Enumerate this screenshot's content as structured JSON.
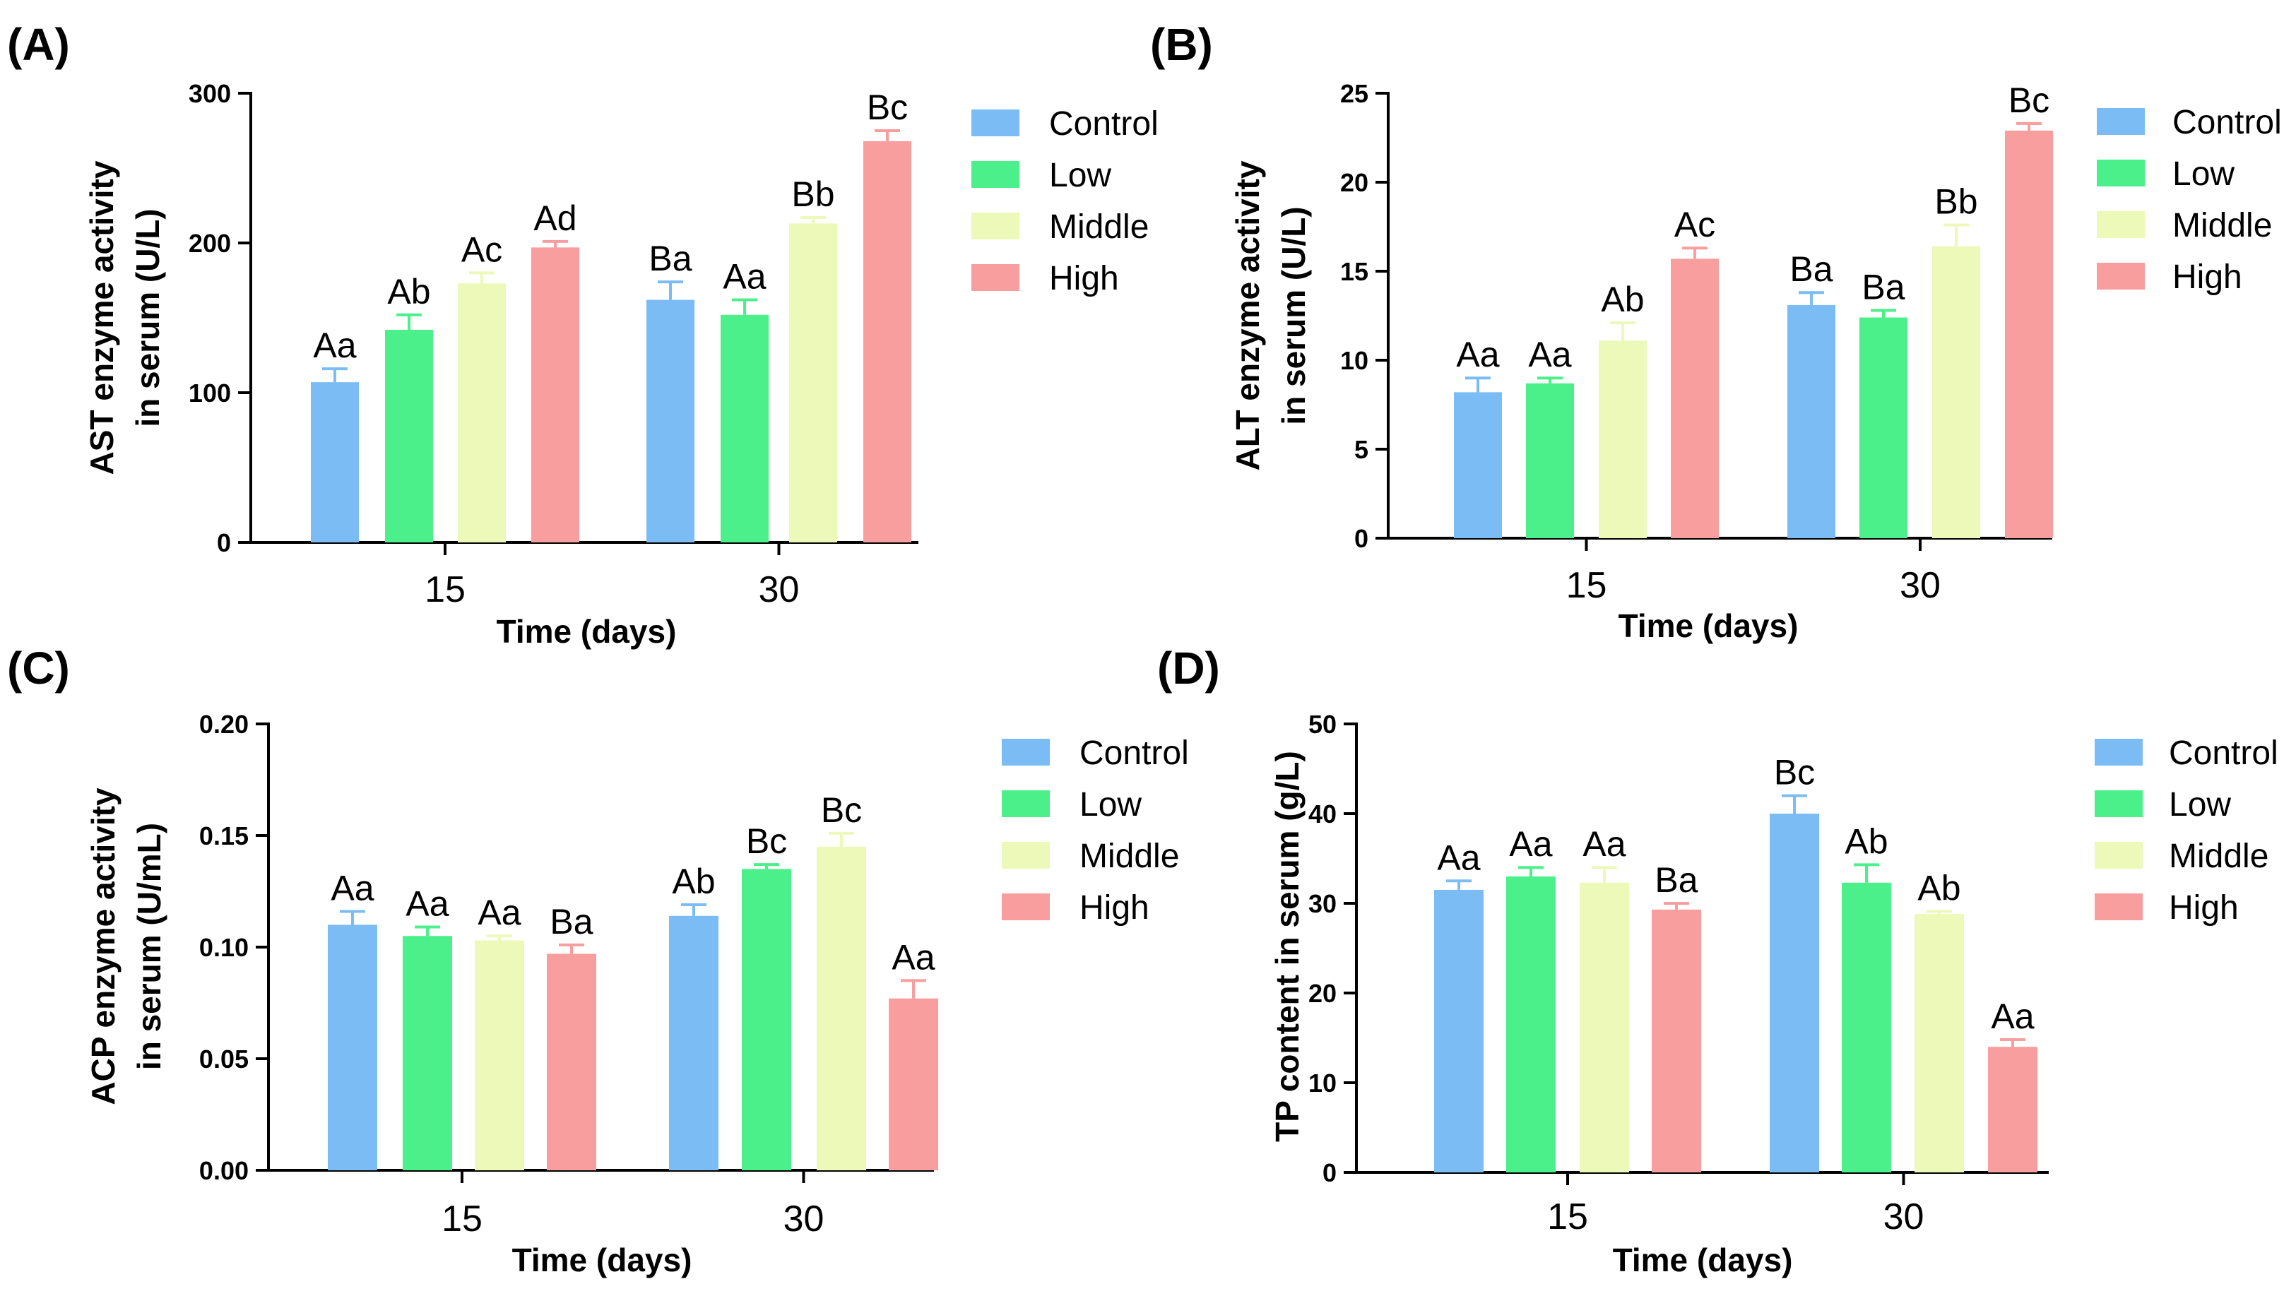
{
  "colors": {
    "Control": "#7bbcf5",
    "Low": "#4cf08a",
    "Middle": "#ecf9b8",
    "High": "#f99e9e",
    "axis": "#000000"
  },
  "chart_data": [
    {
      "type": "bar",
      "panel": "(A)",
      "xlabel": "Time (days)",
      "ylabel": [
        "AST enzyme activity",
        "in serum (U/L)"
      ],
      "ylim": [
        0,
        300
      ],
      "yticks": [
        "0",
        "100",
        "200",
        "300"
      ],
      "categories": [
        "15",
        "30"
      ],
      "legend": [
        "Control",
        "Low",
        "Middle",
        "High"
      ],
      "series": [
        {
          "name": "Control",
          "values": [
            107,
            162
          ],
          "errors": [
            9,
            12
          ],
          "labels": [
            "Aa",
            "Ba"
          ]
        },
        {
          "name": "Low",
          "values": [
            142,
            152
          ],
          "errors": [
            10,
            10
          ],
          "labels": [
            "Ab",
            "Aa"
          ]
        },
        {
          "name": "Middle",
          "values": [
            173,
            213
          ],
          "errors": [
            7,
            4
          ],
          "labels": [
            "Ac",
            "Bb"
          ]
        },
        {
          "name": "High",
          "values": [
            197,
            268
          ],
          "errors": [
            4,
            7
          ],
          "labels": [
            "Ad",
            "Bc"
          ]
        }
      ]
    },
    {
      "type": "bar",
      "panel": "(B)",
      "xlabel": "Time (days)",
      "ylabel": [
        "ALT enzyme activity",
        "in serum (U/L)"
      ],
      "ylim": [
        0,
        25
      ],
      "yticks": [
        "0",
        "5",
        "10",
        "15",
        "20",
        "25"
      ],
      "categories": [
        "15",
        "30"
      ],
      "legend": [
        "Control",
        "Low",
        "Middle",
        "High"
      ],
      "series": [
        {
          "name": "Control",
          "values": [
            8.2,
            13.1
          ],
          "errors": [
            0.8,
            0.7
          ],
          "labels": [
            "Aa",
            "Ba"
          ]
        },
        {
          "name": "Low",
          "values": [
            8.7,
            12.4
          ],
          "errors": [
            0.3,
            0.4
          ],
          "labels": [
            "Aa",
            "Ba"
          ]
        },
        {
          "name": "Middle",
          "values": [
            11.1,
            16.4
          ],
          "errors": [
            1.0,
            1.2
          ],
          "labels": [
            "Ab",
            "Bb"
          ]
        },
        {
          "name": "High",
          "values": [
            15.7,
            22.9
          ],
          "errors": [
            0.6,
            0.4
          ],
          "labels": [
            "Ac",
            "Bc"
          ]
        }
      ]
    },
    {
      "type": "bar",
      "panel": "(C)",
      "xlabel": "Time (days)",
      "ylabel": [
        "ACP enzyme activity",
        "in serum (U/mL)"
      ],
      "ylim": [
        0,
        0.2
      ],
      "yticks": [
        "0.00",
        "0.05",
        "0.10",
        "0.15",
        "0.20"
      ],
      "categories": [
        "15",
        "30"
      ],
      "legend": [
        "Control",
        "Low",
        "Middle",
        "High"
      ],
      "series": [
        {
          "name": "Control",
          "values": [
            0.11,
            0.114
          ],
          "errors": [
            0.006,
            0.005
          ],
          "labels": [
            "Aa",
            "Ab"
          ]
        },
        {
          "name": "Low",
          "values": [
            0.105,
            0.135
          ],
          "errors": [
            0.004,
            0.002
          ],
          "labels": [
            "Aa",
            "Bc"
          ]
        },
        {
          "name": "Middle",
          "values": [
            0.103,
            0.145
          ],
          "errors": [
            0.002,
            0.006
          ],
          "labels": [
            "Aa",
            "Bc"
          ]
        },
        {
          "name": "High",
          "values": [
            0.097,
            0.077
          ],
          "errors": [
            0.004,
            0.008
          ],
          "labels": [
            "Ba",
            "Aa"
          ]
        }
      ]
    },
    {
      "type": "bar",
      "panel": "(D)",
      "xlabel": "Time (days)",
      "ylabel": [
        "TP content in serum (g/L)"
      ],
      "ylim": [
        0,
        50
      ],
      "yticks": [
        "0",
        "10",
        "20",
        "30",
        "40",
        "50"
      ],
      "categories": [
        "15",
        "30"
      ],
      "legend": [
        "Control",
        "Low",
        "Middle",
        "High"
      ],
      "series": [
        {
          "name": "Control",
          "values": [
            31.5,
            40.0
          ],
          "errors": [
            1.0,
            2.0
          ],
          "labels": [
            "Aa",
            "Bc"
          ]
        },
        {
          "name": "Low",
          "values": [
            33.0,
            32.3
          ],
          "errors": [
            1.0,
            2.0
          ],
          "labels": [
            "Aa",
            "Ab"
          ]
        },
        {
          "name": "Middle",
          "values": [
            32.3,
            28.8
          ],
          "errors": [
            1.7,
            0.3
          ],
          "labels": [
            "Aa",
            "Ab"
          ]
        },
        {
          "name": "High",
          "values": [
            29.3,
            14.0
          ],
          "errors": [
            0.7,
            0.8
          ],
          "labels": [
            "Ba",
            "Aa"
          ]
        }
      ]
    }
  ]
}
